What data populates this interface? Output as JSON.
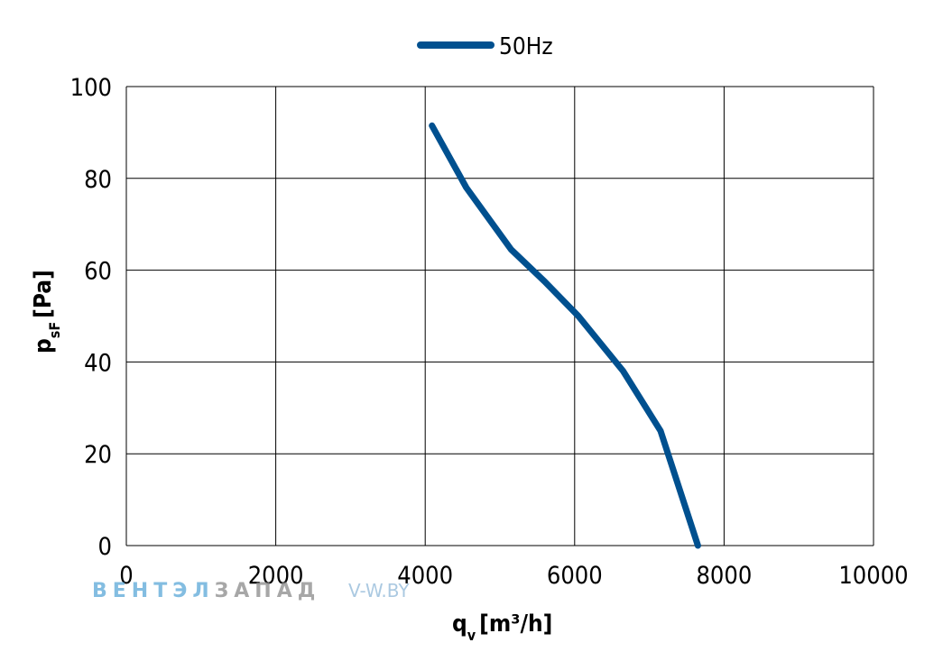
{
  "chart_data": {
    "type": "line",
    "x_label": "q",
    "x_label_sub": "v",
    "x_label_unit": "[m³/h]",
    "y_label": "p",
    "y_label_sub": "sF",
    "y_label_unit": "[Pa]",
    "xlim": [
      0,
      10000
    ],
    "ylim": [
      0,
      100
    ],
    "x_ticks": [
      "0",
      "2000",
      "4000",
      "6000",
      "8000",
      "10000"
    ],
    "y_ticks": [
      "0",
      "20",
      "40",
      "60",
      "80",
      "100"
    ],
    "grid": true,
    "legend_position": "top-center",
    "series": [
      {
        "name": "50Hz",
        "color": "#00508f",
        "x": [
          4090,
          4550,
          5150,
          5600,
          6050,
          6650,
          7150,
          7650
        ],
        "y": [
          91.5,
          78,
          64.5,
          57.5,
          50,
          38,
          25,
          0
        ]
      }
    ]
  },
  "watermark": {
    "brand_part1": "ВЕНТЭЛ",
    "brand_part2": "ЗАПАД",
    "site": "V-W.BY"
  }
}
